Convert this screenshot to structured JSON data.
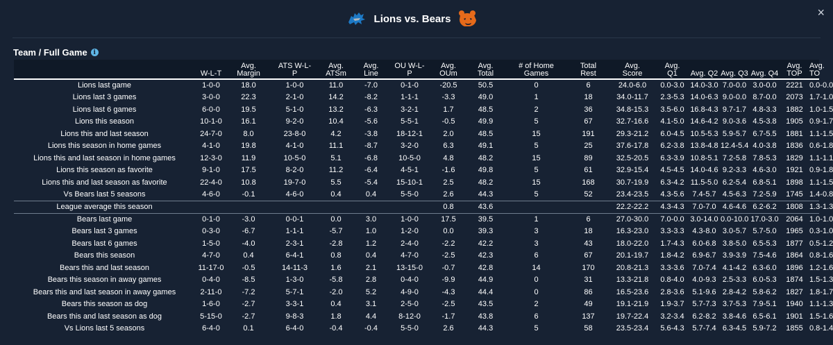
{
  "header": {
    "title": "Lions vs. Bears",
    "home_logo_icon": "lions-logo-icon",
    "away_logo_icon": "bears-logo-icon",
    "lions_color": "#1d79c5",
    "bears_color": "#e66a1a",
    "close_label": "×"
  },
  "section": {
    "title": "Team / Full Game",
    "info_icon": "i"
  },
  "table": {
    "columns": [
      {
        "l1": "",
        "l2": ""
      },
      {
        "l1": "",
        "l2": "W-L-T"
      },
      {
        "l1": "Avg.",
        "l2": "Margin"
      },
      {
        "l1": "ATS W-L-",
        "l2": "P"
      },
      {
        "l1": "Avg.",
        "l2": "ATSm"
      },
      {
        "l1": "Avg.",
        "l2": "Line"
      },
      {
        "l1": "OU W-L-",
        "l2": "P"
      },
      {
        "l1": "Avg.",
        "l2": "OUm"
      },
      {
        "l1": "Avg.",
        "l2": "Total"
      },
      {
        "l1": "# of Home",
        "l2": "Games"
      },
      {
        "l1": "Total",
        "l2": "Rest"
      },
      {
        "l1": "Avg.",
        "l2": "Score"
      },
      {
        "l1": "Avg.",
        "l2": "Q1"
      },
      {
        "l1": "",
        "l2": "Avg. Q2"
      },
      {
        "l1": "",
        "l2": "Avg. Q3"
      },
      {
        "l1": "",
        "l2": "Avg. Q4"
      },
      {
        "l1": "Avg.",
        "l2": "TOP"
      },
      {
        "l1": "Avg.",
        "l2": "TO"
      }
    ],
    "lions_rows": [
      [
        "Lions last game",
        "1-0-0",
        "18.0",
        "1-0-0",
        "11.0",
        "-7.0",
        "0-1-0",
        "-20.5",
        "50.5",
        "0",
        "6",
        "24.0-6.0",
        "0.0-3.0",
        "14.0-3.0",
        "7.0-0.0",
        "3.0-0.0",
        "2221",
        "0.0-0.0"
      ],
      [
        "Lions last 3 games",
        "3-0-0",
        "22.3",
        "2-1-0",
        "14.2",
        "-8.2",
        "1-1-1",
        "-3.3",
        "49.0",
        "1",
        "18",
        "34.0-11.7",
        "2.3-5.3",
        "14.0-6.3",
        "9.0-0.0",
        "8.7-0.0",
        "2073",
        "1.7-1.0"
      ],
      [
        "Lions last 6 games",
        "6-0-0",
        "19.5",
        "5-1-0",
        "13.2",
        "-6.3",
        "3-2-1",
        "1.7",
        "48.5",
        "2",
        "36",
        "34.8-15.3",
        "3.5-6.0",
        "16.8-4.3",
        "9.7-1.7",
        "4.8-3.3",
        "1882",
        "1.0-1.5"
      ],
      [
        "Lions this season",
        "10-1-0",
        "16.1",
        "9-2-0",
        "10.4",
        "-5.6",
        "5-5-1",
        "-0.5",
        "49.9",
        "5",
        "67",
        "32.7-16.6",
        "4.1-5.0",
        "14.6-4.2",
        "9.0-3.6",
        "4.5-3.8",
        "1905",
        "0.9-1.7"
      ],
      [
        "Lions this and last season",
        "24-7-0",
        "8.0",
        "23-8-0",
        "4.2",
        "-3.8",
        "18-12-1",
        "2.0",
        "48.5",
        "15",
        "191",
        "29.3-21.2",
        "6.0-4.5",
        "10.5-5.3",
        "5.9-5.7",
        "6.7-5.5",
        "1881",
        "1.1-1.5"
      ],
      [
        "Lions this season in home games",
        "4-1-0",
        "19.8",
        "4-1-0",
        "11.1",
        "-8.7",
        "3-2-0",
        "6.3",
        "49.1",
        "5",
        "25",
        "37.6-17.8",
        "6.2-3.8",
        "13.8-4.8",
        "12.4-5.4",
        "4.0-3.8",
        "1836",
        "0.6-1.8"
      ],
      [
        "Lions this and last season in home games",
        "12-3-0",
        "11.9",
        "10-5-0",
        "5.1",
        "-6.8",
        "10-5-0",
        "4.8",
        "48.2",
        "15",
        "89",
        "32.5-20.5",
        "6.3-3.9",
        "10.8-5.1",
        "7.2-5.8",
        "7.8-5.3",
        "1829",
        "1.1-1.1"
      ],
      [
        "Lions this season as favorite",
        "9-1-0",
        "17.5",
        "8-2-0",
        "11.2",
        "-6.4",
        "4-5-1",
        "-1.6",
        "49.8",
        "5",
        "61",
        "32.9-15.4",
        "4.5-4.5",
        "14.0-4.6",
        "9.2-3.3",
        "4.6-3.0",
        "1921",
        "0.9-1.8"
      ],
      [
        "Lions this and last season as favorite",
        "22-4-0",
        "10.8",
        "19-7-0",
        "5.5",
        "-5.4",
        "15-10-1",
        "2.5",
        "48.2",
        "15",
        "168",
        "30.7-19.9",
        "6.3-4.2",
        "11.5-5.0",
        "6.2-5.4",
        "6.8-5.1",
        "1898",
        "1.1-1.5"
      ],
      [
        "Vs Bears last 5 seasons",
        "4-6-0",
        "-0.1",
        "4-6-0",
        "0.4",
        "0.4",
        "5-5-0",
        "2.6",
        "44.3",
        "5",
        "52",
        "23.4-23.5",
        "4.3-5.6",
        "7.4-5.7",
        "4.5-6.3",
        "7.2-5.9",
        "1745",
        "1.4-0.8"
      ]
    ],
    "league_row": [
      "League average this season",
      "",
      "",
      "",
      "",
      "",
      "",
      "0.8",
      "43.6",
      "",
      "",
      "22.2-22.2",
      "4.3-4.3",
      "7.0-7.0",
      "4.6-4.6",
      "6.2-6.2",
      "1808",
      "1.3-1.3"
    ],
    "bears_rows": [
      [
        "Bears last game",
        "0-1-0",
        "-3.0",
        "0-0-1",
        "0.0",
        "3.0",
        "1-0-0",
        "17.5",
        "39.5",
        "1",
        "6",
        "27.0-30.0",
        "7.0-0.0",
        "3.0-14.0",
        "0.0-10.0",
        "17.0-3.0",
        "2064",
        "1.0-1.0"
      ],
      [
        "Bears last 3 games",
        "0-3-0",
        "-6.7",
        "1-1-1",
        "-5.7",
        "1.0",
        "1-2-0",
        "0.0",
        "39.3",
        "3",
        "18",
        "16.3-23.0",
        "3.3-3.3",
        "4.3-8.0",
        "3.0-5.7",
        "5.7-5.0",
        "1965",
        "0.3-1.0"
      ],
      [
        "Bears last 6 games",
        "1-5-0",
        "-4.0",
        "2-3-1",
        "-2.8",
        "1.2",
        "2-4-0",
        "-2.2",
        "42.2",
        "3",
        "43",
        "18.0-22.0",
        "1.7-4.3",
        "6.0-6.8",
        "3.8-5.0",
        "6.5-5.3",
        "1877",
        "0.5-1.2"
      ],
      [
        "Bears this season",
        "4-7-0",
        "0.4",
        "6-4-1",
        "0.8",
        "0.4",
        "4-7-0",
        "-2.5",
        "42.3",
        "6",
        "67",
        "20.1-19.7",
        "1.8-4.2",
        "6.9-6.7",
        "3.9-3.9",
        "7.5-4.6",
        "1864",
        "0.8-1.6"
      ],
      [
        "Bears this and last season",
        "11-17-0",
        "-0.5",
        "14-11-3",
        "1.6",
        "2.1",
        "13-15-0",
        "-0.7",
        "42.8",
        "14",
        "170",
        "20.8-21.3",
        "3.3-3.6",
        "7.0-7.4",
        "4.1-4.2",
        "6.3-6.0",
        "1896",
        "1.2-1.6"
      ],
      [
        "Bears this season in away games",
        "0-4-0",
        "-8.5",
        "1-3-0",
        "-5.8",
        "2.8",
        "0-4-0",
        "-9.9",
        "44.9",
        "0",
        "31",
        "13.3-21.8",
        "0.8-4.0",
        "4.0-9.3",
        "2.5-3.3",
        "6.0-5.3",
        "1874",
        "1.5-1.3"
      ],
      [
        "Bears this and last season in away games",
        "2-11-0",
        "-7.2",
        "5-7-1",
        "-2.0",
        "5.2",
        "4-9-0",
        "-4.3",
        "44.4",
        "0",
        "86",
        "16.5-23.6",
        "2.8-3.6",
        "5.1-9.6",
        "2.8-4.2",
        "5.8-6.2",
        "1827",
        "1.8-1.7"
      ],
      [
        "Bears this season as dog",
        "1-6-0",
        "-2.7",
        "3-3-1",
        "0.4",
        "3.1",
        "2-5-0",
        "-2.5",
        "43.5",
        "2",
        "49",
        "19.1-21.9",
        "1.9-3.7",
        "5.7-7.3",
        "3.7-5.3",
        "7.9-5.1",
        "1940",
        "1.1-1.3"
      ],
      [
        "Bears this and last season as dog",
        "5-15-0",
        "-2.7",
        "9-8-3",
        "1.8",
        "4.4",
        "8-12-0",
        "-1.7",
        "43.8",
        "6",
        "137",
        "19.7-22.4",
        "3.2-3.4",
        "6.2-8.2",
        "3.8-4.6",
        "6.5-6.1",
        "1901",
        "1.5-1.6"
      ],
      [
        "Vs Lions last 5 seasons",
        "6-4-0",
        "0.1",
        "6-4-0",
        "-0.4",
        "-0.4",
        "5-5-0",
        "2.6",
        "44.3",
        "5",
        "58",
        "23.5-23.4",
        "5.6-4.3",
        "5.7-7.4",
        "6.3-4.5",
        "5.9-7.2",
        "1855",
        "0.8-1.4"
      ]
    ]
  }
}
